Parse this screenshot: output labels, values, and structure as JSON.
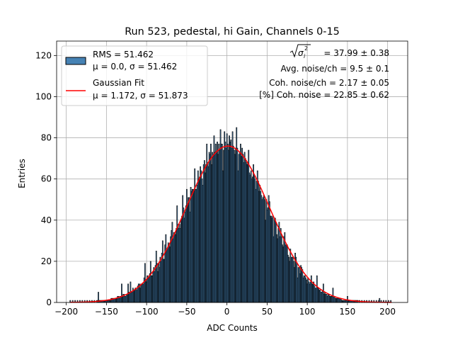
{
  "chart_data": {
    "type": "bar",
    "title": "Run 523, pedestal, hi Gain, Channels 0-15",
    "xlabel": "ADC Counts",
    "ylabel": "Entries",
    "xlim": [
      -212,
      225
    ],
    "ylim": [
      0,
      127
    ],
    "xticks": [
      -200,
      -150,
      -100,
      -50,
      0,
      50,
      100,
      150,
      200
    ],
    "xtick_labels": [
      "−200",
      "−150",
      "−100",
      "−50",
      "0",
      "50",
      "100",
      "150",
      "200"
    ],
    "yticks": [
      0,
      20,
      40,
      60,
      80,
      100,
      120
    ],
    "ytick_labels": [
      "0",
      "20",
      "40",
      "60",
      "80",
      "100",
      "120"
    ],
    "grid": true,
    "histogram": {
      "name": "RMS = 51.462",
      "stats_label": "μ = 0.0, σ = 51.462",
      "bin_range": [
        -195,
        205
      ],
      "bin_width": 1,
      "amplitude": 76,
      "mean": 0.0,
      "sigma": 51.462,
      "spikes": [
        [
          -160,
          4
        ],
        [
          -131,
          6
        ],
        [
          -123,
          5
        ],
        [
          -120,
          6
        ],
        [
          -102,
          8
        ],
        [
          -95,
          4
        ],
        [
          -88,
          6
        ],
        [
          -80,
          7
        ],
        [
          -76,
          6
        ],
        [
          -72,
          9
        ],
        [
          -68,
          8
        ],
        [
          -62,
          6
        ],
        [
          -55,
          7
        ],
        [
          -50,
          6
        ],
        [
          -45,
          8
        ],
        [
          -40,
          6
        ],
        [
          -33,
          5
        ],
        [
          -25,
          10
        ],
        [
          -20,
          7
        ],
        [
          -16,
          9
        ],
        [
          -12,
          7
        ],
        [
          -8,
          8
        ],
        [
          -3,
          6
        ],
        [
          0,
          5
        ],
        [
          3,
          8
        ],
        [
          7,
          9
        ],
        [
          12,
          7
        ],
        [
          17,
          6
        ],
        [
          22,
          6
        ],
        [
          27,
          5
        ],
        [
          33,
          4
        ],
        [
          38,
          4
        ],
        [
          45,
          -5
        ],
        [
          52,
          5
        ],
        [
          58,
          -6
        ],
        [
          65,
          4
        ],
        [
          72,
          5
        ],
        [
          78,
          -5
        ],
        [
          85,
          4
        ],
        [
          92,
          3
        ],
        [
          100,
          -4
        ],
        [
          105,
          3
        ],
        [
          112,
          5
        ],
        [
          120,
          3
        ],
        [
          132,
          4
        ],
        [
          150,
          2
        ],
        [
          190,
          2
        ],
        [
          -72,
          -7
        ],
        [
          -46,
          -6
        ],
        [
          -30,
          -7
        ],
        [
          -5,
          -8
        ],
        [
          14,
          -7
        ],
        [
          31,
          -6
        ],
        [
          48,
          -7
        ],
        [
          -58,
          -6
        ],
        [
          63,
          -5
        ],
        [
          -84,
          -4
        ],
        [
          88,
          -4
        ]
      ],
      "fill_color": "#4682b4",
      "edge_color": "#000000"
    },
    "fit": {
      "name": "Gaussian Fit",
      "stats_label": "μ = 1.172, σ = 51.873",
      "mu": 1.172,
      "sigma": 51.873,
      "amplitude": 76,
      "color": "#ff0000"
    },
    "legend_position": "top-left",
    "annotations": [
      {
        "radical": "σ",
        "sub": "i",
        "sup": "2",
        "value": " = 37.99 ± 0.38"
      },
      {
        "text": "Avg. noise/ch = 9.5 ± 0.1"
      },
      {
        "text": "Coh. noise/ch = 2.17 ± 0.05"
      },
      {
        "text": "[%] Coh. noise = 22.85 ± 0.62"
      }
    ]
  }
}
